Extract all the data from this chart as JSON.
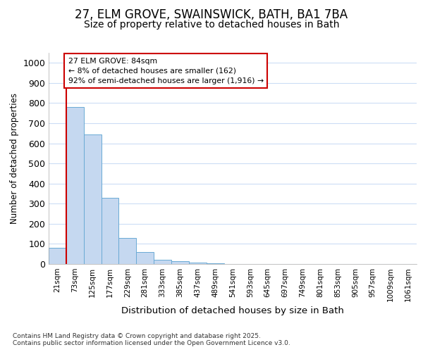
{
  "title": "27, ELM GROVE, SWAINSWICK, BATH, BA1 7BA",
  "subtitle": "Size of property relative to detached houses in Bath",
  "xlabel": "Distribution of detached houses by size in Bath",
  "ylabel": "Number of detached properties",
  "bar_color": "#c5d8f0",
  "bar_edge_color": "#6aaad4",
  "categories": [
    "21sqm",
    "73sqm",
    "125sqm",
    "177sqm",
    "229sqm",
    "281sqm",
    "333sqm",
    "385sqm",
    "437sqm",
    "489sqm",
    "541sqm",
    "593sqm",
    "645sqm",
    "697sqm",
    "749sqm",
    "801sqm",
    "853sqm",
    "905sqm",
    "957sqm",
    "1009sqm",
    "1061sqm"
  ],
  "values": [
    80,
    780,
    645,
    330,
    130,
    58,
    22,
    15,
    8,
    2,
    0,
    0,
    0,
    0,
    0,
    0,
    0,
    0,
    0,
    0,
    0
  ],
  "ylim": [
    0,
    1050
  ],
  "yticks": [
    0,
    100,
    200,
    300,
    400,
    500,
    600,
    700,
    800,
    900,
    1000
  ],
  "annotation_line1": "27 ELM GROVE: 84sqm",
  "annotation_line2": "← 8% of detached houses are smaller (162)",
  "annotation_line3": "92% of semi-detached houses are larger (1,916) →",
  "annotation_box_color": "#ffffff",
  "annotation_box_edge": "#cc0000",
  "line_color": "#cc0000",
  "footer": "Contains HM Land Registry data © Crown copyright and database right 2025.\nContains public sector information licensed under the Open Government Licence v3.0.",
  "background_color": "#ffffff",
  "grid_color": "#ccddf5",
  "title_fontsize": 12,
  "subtitle_fontsize": 10
}
